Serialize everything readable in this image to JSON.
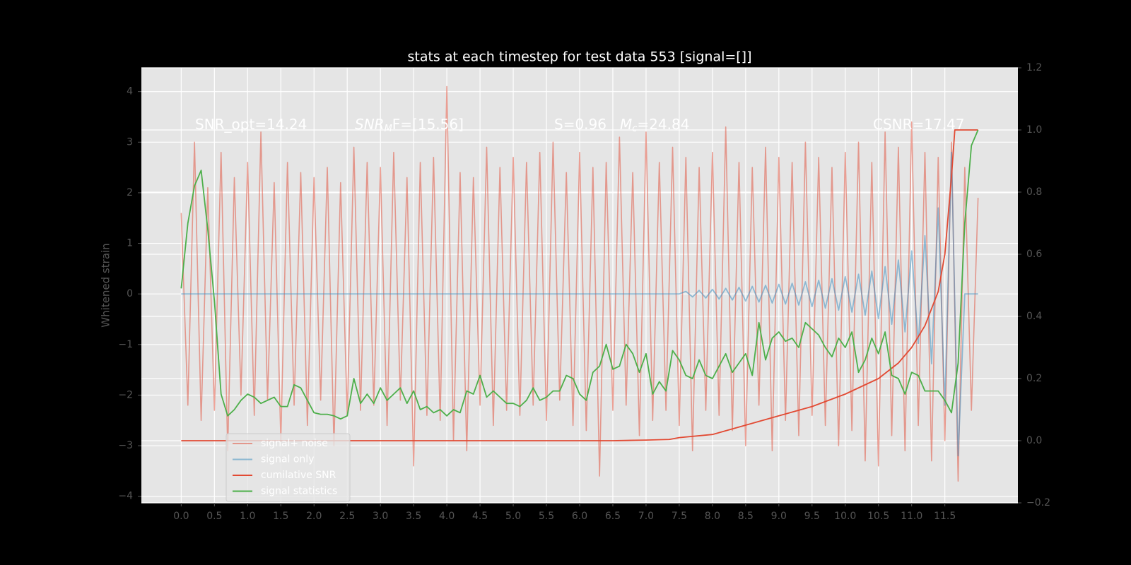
{
  "chart_data": {
    "type": "line",
    "title": "stats at each timestep for test data 553 [signal=[]]",
    "ylabel": "Whitened strain",
    "grid": true,
    "legend": "lower left",
    "xlim": [
      -0.6,
      12.6
    ],
    "ylim": [
      -4.13,
      4.47
    ],
    "y2lim": [
      -0.2,
      1.2
    ],
    "xticks": [
      {
        "value": 0,
        "label": "0.0"
      },
      {
        "value": 0.5,
        "label": "0.5"
      },
      {
        "value": 1,
        "label": "1.0"
      },
      {
        "value": 1.5,
        "label": "1.5"
      },
      {
        "value": 2,
        "label": "2.0"
      },
      {
        "value": 2.5,
        "label": "2.5"
      },
      {
        "value": 3,
        "label": "3.0"
      },
      {
        "value": 3.5,
        "label": "3.5"
      },
      {
        "value": 4,
        "label": "4.0"
      },
      {
        "value": 4.5,
        "label": "4.5"
      },
      {
        "value": 5,
        "label": "5.0"
      },
      {
        "value": 5.5,
        "label": "5.5"
      },
      {
        "value": 6,
        "label": "6.0"
      },
      {
        "value": 6.5,
        "label": "6.5"
      },
      {
        "value": 7,
        "label": "7.0"
      },
      {
        "value": 7.5,
        "label": "7.5"
      },
      {
        "value": 8,
        "label": "8.0"
      },
      {
        "value": 8.5,
        "label": "8.5"
      },
      {
        "value": 9,
        "label": "9.0"
      },
      {
        "value": 9.5,
        "label": "9.5"
      },
      {
        "value": 10,
        "label": "10.0"
      },
      {
        "value": 10.5,
        "label": "10.5"
      },
      {
        "value": 11,
        "label": "11.0"
      },
      {
        "value": 11.5,
        "label": "11.5"
      }
    ],
    "yticks": [
      {
        "value": -4,
        "label": "−4"
      },
      {
        "value": -3,
        "label": "−3"
      },
      {
        "value": -2,
        "label": "−2"
      },
      {
        "value": -1,
        "label": "−1"
      },
      0,
      1,
      2,
      3,
      4
    ],
    "y2ticks": [
      {
        "value": -0.2,
        "label": "−0.2"
      },
      {
        "value": 0,
        "label": "0.0"
      },
      0.2,
      0.4,
      0.6,
      0.8,
      {
        "value": 1,
        "label": "1.0"
      },
      1.2
    ],
    "annotations": [
      {
        "parts": [
          "SNR_opt=14.24"
        ]
      },
      {
        "parts": [
          "SNR",
          "M",
          "F=[15.56]"
        ]
      },
      {
        "parts": [
          "S=0.96"
        ]
      },
      {
        "parts": [
          "M",
          "c",
          "=24.84"
        ]
      },
      {
        "parts": [
          "CSNR=17.47"
        ]
      }
    ],
    "x": [
      0,
      0.1,
      0.2,
      0.3,
      0.4,
      0.5,
      0.6,
      0.7,
      0.8,
      0.9,
      1,
      1.1,
      1.2,
      1.3,
      1.4,
      1.5,
      1.6,
      1.7,
      1.8,
      1.9,
      2,
      2.1,
      2.2,
      2.3,
      2.4,
      2.5,
      2.6,
      2.7,
      2.8,
      2.9,
      3,
      3.1,
      3.2,
      3.3,
      3.4,
      3.5,
      3.6,
      3.7,
      3.8,
      3.9,
      4,
      4.1,
      4.2,
      4.3,
      4.4,
      4.5,
      4.6,
      4.7,
      4.8,
      4.9,
      5,
      5.1,
      5.2,
      5.3,
      5.4,
      5.5,
      5.6,
      5.7,
      5.8,
      5.9,
      6,
      6.1,
      6.2,
      6.3,
      6.4,
      6.5,
      6.6,
      6.7,
      6.8,
      6.9,
      7,
      7.1,
      7.2,
      7.3,
      7.4,
      7.5,
      7.6,
      7.7,
      7.8,
      7.9,
      8,
      8.1,
      8.2,
      8.3,
      8.4,
      8.5,
      8.6,
      8.7,
      8.8,
      8.9,
      9,
      9.1,
      9.2,
      9.3,
      9.4,
      9.5,
      9.6,
      9.7,
      9.8,
      9.9,
      10,
      10.1,
      10.2,
      10.3,
      10.4,
      10.5,
      10.6,
      10.7,
      10.8,
      10.9,
      11,
      11.1,
      11.2,
      11.3,
      11.4,
      11.5,
      11.6,
      11.7,
      11.8,
      11.9,
      12
    ],
    "series": [
      {
        "name": "signal+ noise",
        "color": "#E24A33",
        "alpha": 0.5,
        "values": [
          1.6,
          -2.2,
          3.0,
          -2.5,
          2.1,
          -2.3,
          2.8,
          -3.1,
          2.3,
          -2.0,
          2.6,
          -2.4,
          3.2,
          -2.1,
          2.2,
          -2.9,
          2.6,
          -2.2,
          2.4,
          -2.6,
          2.3,
          -2.1,
          2.5,
          -3.0,
          2.2,
          -2.4,
          2.9,
          -2.3,
          2.6,
          -2.2,
          2.5,
          -2.6,
          2.8,
          -2.1,
          2.3,
          -3.4,
          2.6,
          -2.4,
          2.7,
          -2.5,
          4.1,
          -2.9,
          2.4,
          -3.1,
          2.3,
          -2.2,
          2.9,
          -2.6,
          2.5,
          -2.3,
          2.7,
          -2.4,
          2.6,
          -2.2,
          2.8,
          -2.5,
          3.0,
          -2.1,
          2.4,
          -2.6,
          2.8,
          -2.7,
          2.5,
          -3.6,
          2.6,
          -2.3,
          3.1,
          -2.2,
          2.4,
          -2.8,
          3.2,
          -2.5,
          2.6,
          -2.3,
          2.9,
          -2.6,
          2.7,
          -3.1,
          2.5,
          -2.3,
          2.8,
          -2.4,
          3.3,
          -2.7,
          2.6,
          -3.0,
          2.5,
          -2.2,
          2.9,
          -3.1,
          2.7,
          -2.5,
          2.6,
          -2.8,
          3.0,
          -2.4,
          2.7,
          -2.6,
          2.5,
          -3.0,
          2.8,
          -2.7,
          3.0,
          -3.3,
          2.6,
          -3.4,
          3.2,
          -2.8,
          2.9,
          -3.1,
          3.4,
          -2.6,
          2.8,
          -3.3,
          2.7,
          -2.9,
          3.0,
          -3.7,
          2.5,
          -2.3,
          1.9
        ]
      },
      {
        "name": "signal only",
        "color": "#348ABD",
        "alpha": 0.5,
        "values": [
          0,
          0,
          0,
          0,
          0,
          0,
          0,
          0,
          0,
          0,
          0,
          0,
          0,
          0,
          0,
          0,
          0,
          0,
          0,
          0,
          0,
          0,
          0,
          0,
          0,
          0,
          0,
          0,
          0,
          0,
          0,
          0,
          0,
          0,
          0,
          0,
          0,
          0,
          0,
          0,
          0,
          0,
          0,
          0,
          0,
          0,
          0,
          0,
          0,
          0,
          0,
          0,
          0,
          0,
          0,
          0,
          0,
          0,
          0,
          0,
          0,
          0,
          0,
          0,
          0,
          0,
          0,
          0,
          0,
          0,
          0,
          0,
          0,
          0,
          0,
          0,
          0.05,
          -0.06,
          0.07,
          -0.08,
          0.09,
          -0.1,
          0.11,
          -0.12,
          0.13,
          -0.14,
          0.15,
          -0.16,
          0.17,
          -0.18,
          0.19,
          -0.2,
          0.21,
          -0.22,
          0.24,
          -0.25,
          0.27,
          -0.28,
          0.3,
          -0.32,
          0.34,
          -0.36,
          0.39,
          -0.42,
          0.45,
          -0.49,
          0.54,
          -0.6,
          0.67,
          -0.75,
          0.85,
          -0.98,
          1.15,
          -1.38,
          1.7,
          -2.2,
          2.8,
          -3.2,
          0,
          0,
          0
        ]
      },
      {
        "name": "cumilative SNR",
        "color": "#E24A33",
        "alpha": 1,
        "axis": "y2",
        "x": [
          0,
          6.5,
          7.0,
          7.35,
          7.5,
          8.0,
          8.5,
          9.0,
          9.5,
          10.0,
          10.5,
          10.8,
          11.0,
          11.2,
          11.4,
          11.5,
          11.6,
          11.65,
          11.7,
          12.0
        ],
        "values": [
          0,
          0,
          0.002,
          0.004,
          0.01,
          0.02,
          0.05,
          0.08,
          0.11,
          0.15,
          0.2,
          0.25,
          0.3,
          0.37,
          0.48,
          0.6,
          0.85,
          1.0,
          1.0,
          1.0
        ]
      },
      {
        "name": "signal statistics",
        "color": "#4DAF4A",
        "alpha": 1,
        "axis": "y2",
        "values": [
          0.49,
          0.7,
          0.82,
          0.87,
          0.68,
          0.45,
          0.15,
          0.08,
          0.1,
          0.13,
          0.15,
          0.14,
          0.12,
          0.13,
          0.14,
          0.11,
          0.11,
          0.18,
          0.17,
          0.13,
          0.09,
          0.085,
          0.085,
          0.08,
          0.07,
          0.08,
          0.2,
          0.12,
          0.15,
          0.12,
          0.17,
          0.13,
          0.15,
          0.17,
          0.12,
          0.16,
          0.1,
          0.11,
          0.09,
          0.1,
          0.08,
          0.1,
          0.09,
          0.16,
          0.15,
          0.21,
          0.14,
          0.16,
          0.14,
          0.12,
          0.12,
          0.11,
          0.13,
          0.17,
          0.13,
          0.14,
          0.16,
          0.16,
          0.21,
          0.2,
          0.15,
          0.13,
          0.22,
          0.24,
          0.31,
          0.23,
          0.24,
          0.31,
          0.28,
          0.22,
          0.28,
          0.15,
          0.19,
          0.16,
          0.29,
          0.26,
          0.21,
          0.2,
          0.26,
          0.21,
          0.2,
          0.24,
          0.28,
          0.22,
          0.25,
          0.28,
          0.21,
          0.38,
          0.26,
          0.33,
          0.35,
          0.32,
          0.33,
          0.3,
          0.38,
          0.36,
          0.34,
          0.3,
          0.27,
          0.33,
          0.3,
          0.35,
          0.22,
          0.26,
          0.33,
          0.28,
          0.35,
          0.21,
          0.2,
          0.15,
          0.22,
          0.21,
          0.16,
          0.16,
          0.16,
          0.13,
          0.09,
          0.25,
          0.7,
          0.95,
          1.0
        ]
      }
    ]
  }
}
